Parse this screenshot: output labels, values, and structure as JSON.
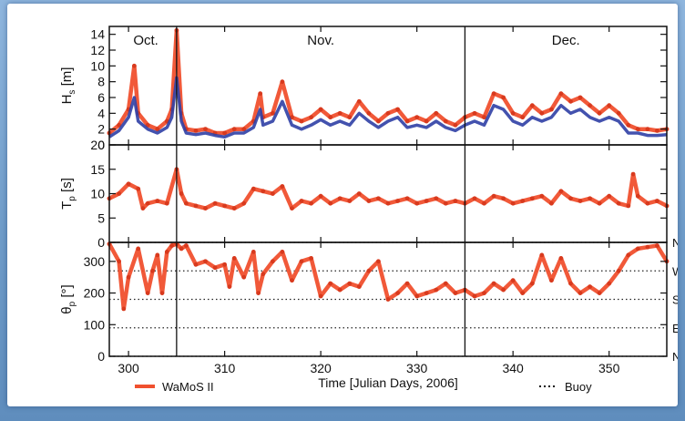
{
  "chart_data": {
    "type": "line",
    "xlabel": "Time [Julian Days, 2006]",
    "xlim": [
      298,
      356
    ],
    "x_ticks": [
      "300",
      "310",
      "320",
      "330",
      "340",
      "350"
    ],
    "month_dividers": [
      305,
      335
    ],
    "month_labels": [
      "Oct.",
      "Nov.",
      "Dec."
    ],
    "panels": [
      {
        "ylabel_main": "H",
        "ylabel_sub": "s",
        "ylabel_unit": " [m]",
        "ylim": [
          0,
          15
        ],
        "y_ticks": [
          "0",
          "2",
          "4",
          "6",
          "8",
          "10",
          "12",
          "14"
        ],
        "series": [
          {
            "name": "WaMoS II",
            "x": [
              298,
              299,
              300,
              300.6,
              301,
              302,
              303,
              304,
              304.5,
              305,
              305.5,
              306,
              307,
              308,
              309,
              310,
              311,
              312,
              313,
              313.7,
              314,
              315,
              316,
              317,
              318,
              319,
              320,
              321,
              322,
              323,
              324,
              325,
              326,
              327,
              328,
              329,
              330,
              331,
              332,
              333,
              334,
              335,
              336,
              337,
              338,
              339,
              340,
              341,
              342,
              343,
              344,
              345,
              346,
              347,
              348,
              349,
              350,
              351,
              352,
              353,
              354,
              355,
              356
            ],
            "values": [
              1.5,
              2.5,
              4.5,
              10.0,
              4.0,
              2.5,
              2.0,
              3.0,
              4.5,
              14.5,
              4.0,
              2.0,
              1.8,
              2.0,
              1.5,
              1.5,
              2.0,
              2.0,
              3.0,
              6.5,
              3.5,
              4.0,
              8.0,
              3.5,
              3.0,
              3.5,
              4.5,
              3.5,
              4.0,
              3.5,
              5.5,
              4.0,
              3.0,
              4.0,
              4.5,
              3.0,
              3.5,
              3.0,
              4.0,
              3.0,
              2.5,
              3.5,
              4.0,
              3.5,
              6.5,
              6.0,
              4.0,
              3.5,
              5.0,
              4.0,
              4.5,
              6.5,
              5.5,
              6.0,
              5.0,
              4.0,
              5.0,
              4.0,
              2.5,
              2.0,
              2.0,
              1.8,
              2.0
            ]
          },
          {
            "name": "Buoy",
            "x": [
              298,
              299,
              300,
              300.6,
              301,
              302,
              303,
              304,
              304.5,
              305,
              305.5,
              306,
              307,
              308,
              309,
              310,
              311,
              312,
              313,
              313.7,
              314,
              315,
              316,
              317,
              318,
              319,
              320,
              321,
              322,
              323,
              324,
              325,
              326,
              327,
              328,
              329,
              330,
              331,
              332,
              333,
              334,
              335,
              336,
              337,
              338,
              339,
              340,
              341,
              342,
              343,
              344,
              345,
              346,
              347,
              348,
              349,
              350,
              351,
              352,
              353,
              354,
              355,
              356
            ],
            "values": [
              1.0,
              1.8,
              3.5,
              6.0,
              3.0,
              2.0,
              1.5,
              2.2,
              3.5,
              8.5,
              3.0,
              1.5,
              1.3,
              1.5,
              1.2,
              1.0,
              1.5,
              1.5,
              2.2,
              4.5,
              2.5,
              3.0,
              5.5,
              2.5,
              2.0,
              2.5,
              3.2,
              2.5,
              3.0,
              2.5,
              4.0,
              3.0,
              2.2,
              3.0,
              3.5,
              2.2,
              2.5,
              2.2,
              3.0,
              2.2,
              1.8,
              2.5,
              3.0,
              2.5,
              5.0,
              4.5,
              3.0,
              2.5,
              3.5,
              3.0,
              3.5,
              5.0,
              4.0,
              4.5,
              3.5,
              3.0,
              3.5,
              3.0,
              1.5,
              1.5,
              1.2,
              1.2,
              1.3
            ]
          }
        ]
      },
      {
        "ylabel_main": "T",
        "ylabel_sub": "p",
        "ylabel_unit": " [s]",
        "ylim": [
          0,
          20
        ],
        "y_ticks": [
          "0",
          "5",
          "10",
          "15",
          "20"
        ],
        "series": [
          {
            "name": "WaMoS II",
            "x": [
              298,
              299,
              300,
              301,
              301.5,
              302,
              303,
              304,
              305,
              305.5,
              306,
              307,
              308,
              309,
              310,
              311,
              312,
              313,
              314,
              315,
              316,
              317,
              318,
              319,
              320,
              321,
              322,
              323,
              324,
              325,
              326,
              327,
              328,
              329,
              330,
              331,
              332,
              333,
              334,
              335,
              336,
              337,
              338,
              339,
              340,
              341,
              342,
              343,
              344,
              345,
              346,
              347,
              348,
              349,
              350,
              351,
              352,
              352.5,
              353,
              354,
              355,
              356
            ],
            "values": [
              9.0,
              10.0,
              12.0,
              11.0,
              7.0,
              8.0,
              8.5,
              8.0,
              15.0,
              10.0,
              8.0,
              7.5,
              7.0,
              8.0,
              7.5,
              7.0,
              8.0,
              11.0,
              10.5,
              10.0,
              11.5,
              7.0,
              8.5,
              8.0,
              9.5,
              8.0,
              9.0,
              8.5,
              10.0,
              8.5,
              9.0,
              8.0,
              8.5,
              9.0,
              8.0,
              8.5,
              9.0,
              8.0,
              8.5,
              8.0,
              9.0,
              8.0,
              9.5,
              9.0,
              8.0,
              8.5,
              9.0,
              9.5,
              8.0,
              10.5,
              9.0,
              8.5,
              9.0,
              8.0,
              9.5,
              8.0,
              7.5,
              14.0,
              9.5,
              8.0,
              8.5,
              7.5
            ]
          }
        ]
      },
      {
        "ylabel_main": "θ",
        "ylabel_sub": "p",
        "ylabel_unit": " [°]",
        "ylim": [
          0,
          360
        ],
        "y_ticks": [
          "0",
          "100",
          "200",
          "300"
        ],
        "direction_lines": [
          0,
          90,
          180,
          270,
          360
        ],
        "direction_labels": [
          "N",
          "E",
          "S",
          "W",
          "N"
        ],
        "series": [
          {
            "name": "WaMoS II",
            "x": [
              298,
              299,
              299.5,
              300,
              301,
              302,
              302.5,
              303,
              303.5,
              304,
              304.5,
              305,
              305.5,
              306,
              307,
              308,
              309,
              310,
              310.5,
              311,
              312,
              313,
              313.5,
              314,
              315,
              316,
              317,
              318,
              319,
              320,
              321,
              322,
              323,
              324,
              325,
              326,
              327,
              328,
              329,
              330,
              331,
              332,
              333,
              334,
              335,
              336,
              337,
              338,
              339,
              340,
              341,
              342,
              343,
              344,
              345,
              346,
              347,
              348,
              349,
              350,
              351,
              352,
              353,
              354,
              355,
              356
            ],
            "values": [
              355,
              300,
              150,
              250,
              340,
              200,
              270,
              320,
              200,
              330,
              350,
              355,
              340,
              350,
              290,
              300,
              280,
              290,
              220,
              310,
              250,
              330,
              200,
              260,
              300,
              330,
              240,
              300,
              310,
              190,
              230,
              210,
              230,
              220,
              270,
              300,
              180,
              200,
              230,
              190,
              200,
              210,
              230,
              200,
              210,
              190,
              200,
              230,
              210,
              240,
              200,
              230,
              320,
              240,
              310,
              230,
              200,
              220,
              200,
              230,
              270,
              320,
              340,
              345,
              350,
              300
            ]
          }
        ]
      }
    ],
    "legend": [
      "WaMoS II",
      "Buoy"
    ],
    "legend_placement": "bottom",
    "colors": {
      "wamos": "#f0502e",
      "buoy": "#2f3fa5"
    }
  }
}
